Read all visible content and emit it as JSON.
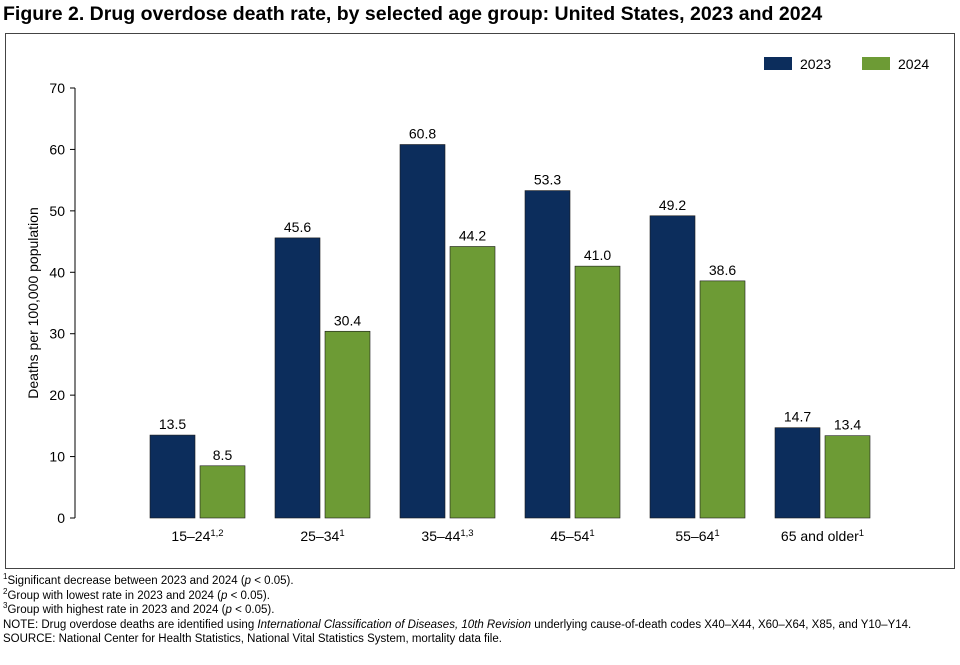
{
  "chart_data": {
    "type": "bar",
    "title": "Figure 2. Drug overdose death rate, by selected age group: United States, 2023 and 2024",
    "y_label": "Deaths per 100,000 population",
    "categories": [
      "15–24",
      "25–34",
      "35–44",
      "45–54",
      "55–64",
      "65 and older"
    ],
    "category_notes": [
      "1,2",
      "1",
      "1,3",
      "1",
      "1",
      "1"
    ],
    "series": [
      {
        "name": "2023",
        "color": "#0c2d5c",
        "values": [
          13.5,
          45.6,
          60.8,
          53.3,
          49.2,
          14.7
        ],
        "value_labels": [
          "13.5",
          "45.6",
          "60.8",
          "53.3",
          "49.2",
          "14.7"
        ]
      },
      {
        "name": "2024",
        "color": "#6d9b35",
        "values": [
          8.5,
          30.4,
          44.2,
          41.0,
          38.6,
          13.4
        ],
        "value_labels": [
          "8.5",
          "30.4",
          "44.2",
          "41.0",
          "38.6",
          "13.4"
        ]
      }
    ],
    "ylim": [
      0,
      70
    ],
    "yticks": [
      0,
      10,
      20,
      30,
      40,
      50,
      60,
      70
    ],
    "legend": "top-right"
  },
  "footnotes": [
    {
      "marker": "1",
      "parts": [
        "Significant decrease between 2023 and 2024 (",
        "p",
        " < 0.05)."
      ]
    },
    {
      "marker": "2",
      "parts": [
        "Group with lowest rate in 2023 and 2024 (",
        "p",
        " < 0.05)."
      ]
    },
    {
      "marker": "3",
      "parts": [
        "Group with highest rate in 2023 and 2024 (",
        "p",
        " < 0.05)."
      ]
    }
  ],
  "note": {
    "parts": [
      "NOTE: Drug overdose deaths are identified using ",
      "International Classification of Diseases, 10th Revision",
      " underlying cause-of-death codes X40–X44, X60–X64, X85, and Y10–Y14."
    ]
  },
  "source": "SOURCE: National Center for Health Statistics, National Vital Statistics System, mortality data file."
}
